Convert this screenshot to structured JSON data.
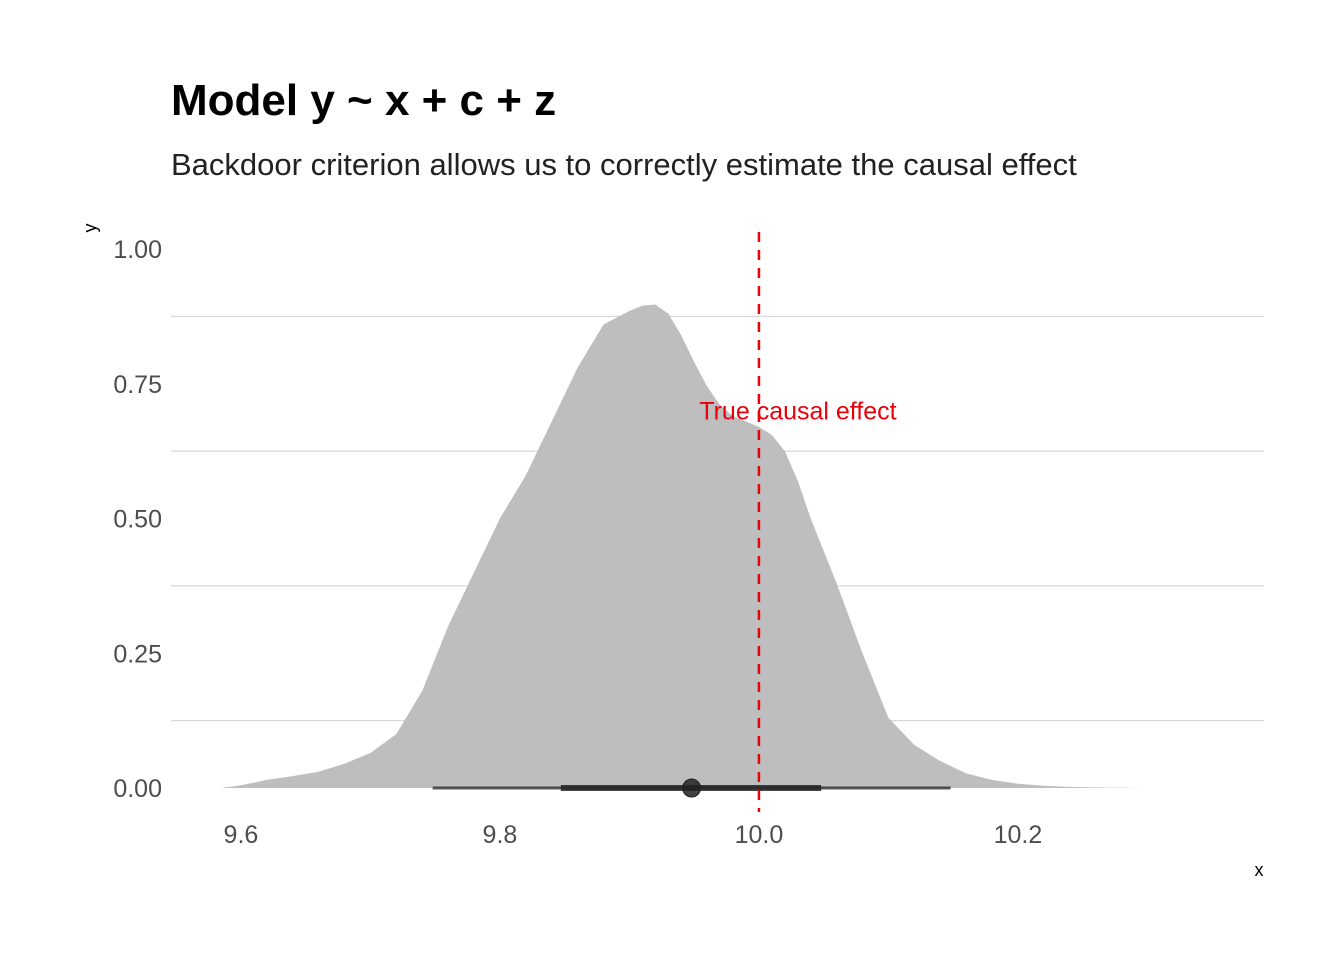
{
  "chart_data": {
    "type": "area",
    "title": "Model y ~ x + c + z",
    "subtitle": "Backdoor criterion allows us to correctly estimate the causal effect",
    "xlabel": "x",
    "ylabel": "y",
    "xlim": [
      9.546,
      10.39
    ],
    "ylim": [
      0,
      1.0
    ],
    "x_ticks": [
      {
        "value": 9.6,
        "label": "9.6"
      },
      {
        "value": 9.8,
        "label": "9.8"
      },
      {
        "value": 10.0,
        "label": "10.0"
      },
      {
        "value": 10.2,
        "label": "10.2"
      }
    ],
    "y_ticks": [
      {
        "value": 0.0,
        "label": "0.00"
      },
      {
        "value": 0.25,
        "label": "0.25"
      },
      {
        "value": 0.5,
        "label": "0.50"
      },
      {
        "value": 0.75,
        "label": "0.75"
      },
      {
        "value": 1.0,
        "label": "1.00"
      }
    ],
    "grid": "horizontal",
    "density": {
      "x": [
        9.585,
        9.6,
        9.62,
        9.64,
        9.66,
        9.68,
        9.7,
        9.72,
        9.74,
        9.76,
        9.78,
        9.8,
        9.82,
        9.84,
        9.86,
        9.88,
        9.9,
        9.91,
        9.92,
        9.93,
        9.94,
        9.95,
        9.96,
        9.97,
        9.98,
        9.99,
        10.0,
        10.01,
        10.02,
        10.03,
        10.04,
        10.06,
        10.08,
        10.1,
        10.12,
        10.14,
        10.16,
        10.18,
        10.2,
        10.22,
        10.24,
        10.26,
        10.28,
        10.3,
        10.333
      ],
      "y": [
        0.0,
        0.005,
        0.015,
        0.022,
        0.03,
        0.045,
        0.065,
        0.1,
        0.18,
        0.3,
        0.4,
        0.5,
        0.58,
        0.68,
        0.78,
        0.86,
        0.885,
        0.895,
        0.897,
        0.88,
        0.84,
        0.79,
        0.745,
        0.71,
        0.69,
        0.68,
        0.67,
        0.655,
        0.625,
        0.57,
        0.5,
        0.38,
        0.25,
        0.13,
        0.08,
        0.05,
        0.027,
        0.015,
        0.008,
        0.004,
        0.002,
        0.001,
        0.0005,
        0.0,
        0.0
      ],
      "color": "#bebebe"
    },
    "point_interval": {
      "point": 9.948,
      "inner": [
        9.847,
        10.048
      ],
      "outer": [
        9.748,
        10.148
      ],
      "color": "#222222"
    },
    "reference_line": {
      "x": 10.0,
      "label": "True causal effect",
      "label_y": 0.7,
      "color": "#e8000b",
      "style": "dashed"
    }
  }
}
